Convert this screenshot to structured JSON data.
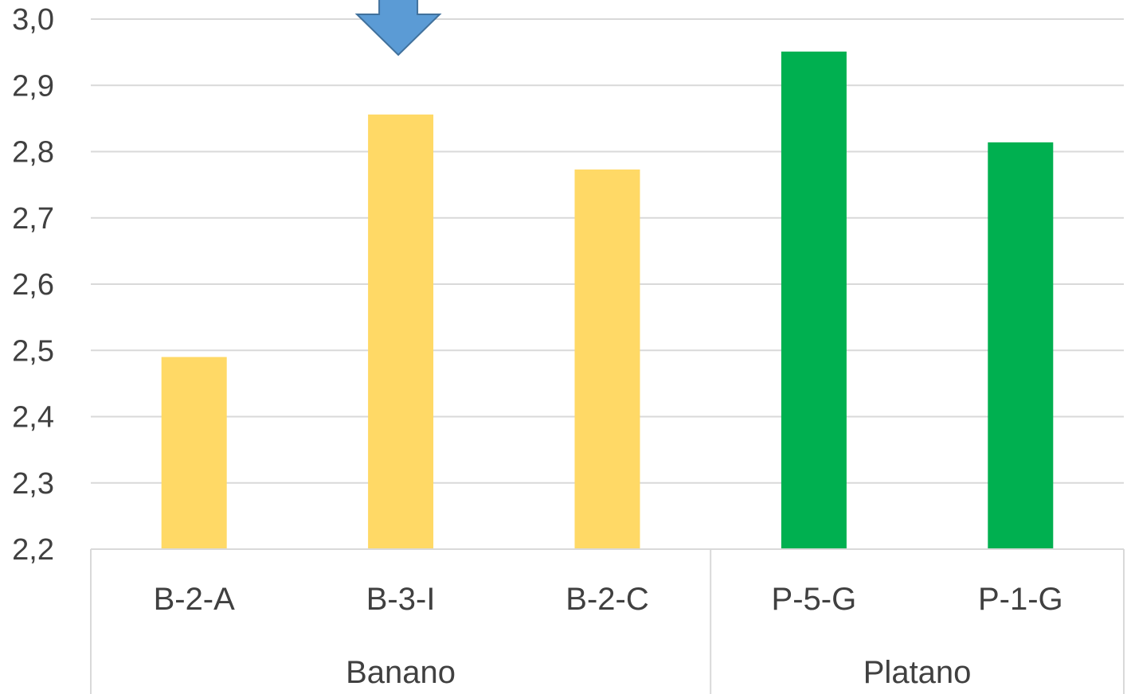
{
  "chart_data": {
    "type": "bar",
    "title": "",
    "xlabel": "",
    "ylabel": "",
    "ylim": [
      2.2,
      3.0
    ],
    "y_ticks": [
      "2,2",
      "2,3",
      "2,4",
      "2,5",
      "2,6",
      "2,7",
      "2,8",
      "2,9",
      "3,0"
    ],
    "grid": true,
    "categories": [
      "B-2-A",
      "B-3-I",
      "B-2-C",
      "P-5-G",
      "P-1-G"
    ],
    "values": [
      2.49,
      2.856,
      2.773,
      2.951,
      2.814
    ],
    "groups": [
      {
        "label": "Banano",
        "categories": [
          "B-2-A",
          "B-3-I",
          "B-2-C"
        ],
        "color": "#FFD966"
      },
      {
        "label": "Platano",
        "categories": [
          "P-5-G",
          "P-1-G"
        ],
        "color": "#00B050"
      }
    ],
    "annotations": [
      {
        "type": "down-arrow",
        "target_category": "B-3-I",
        "color": "#5B9BD5"
      }
    ]
  }
}
